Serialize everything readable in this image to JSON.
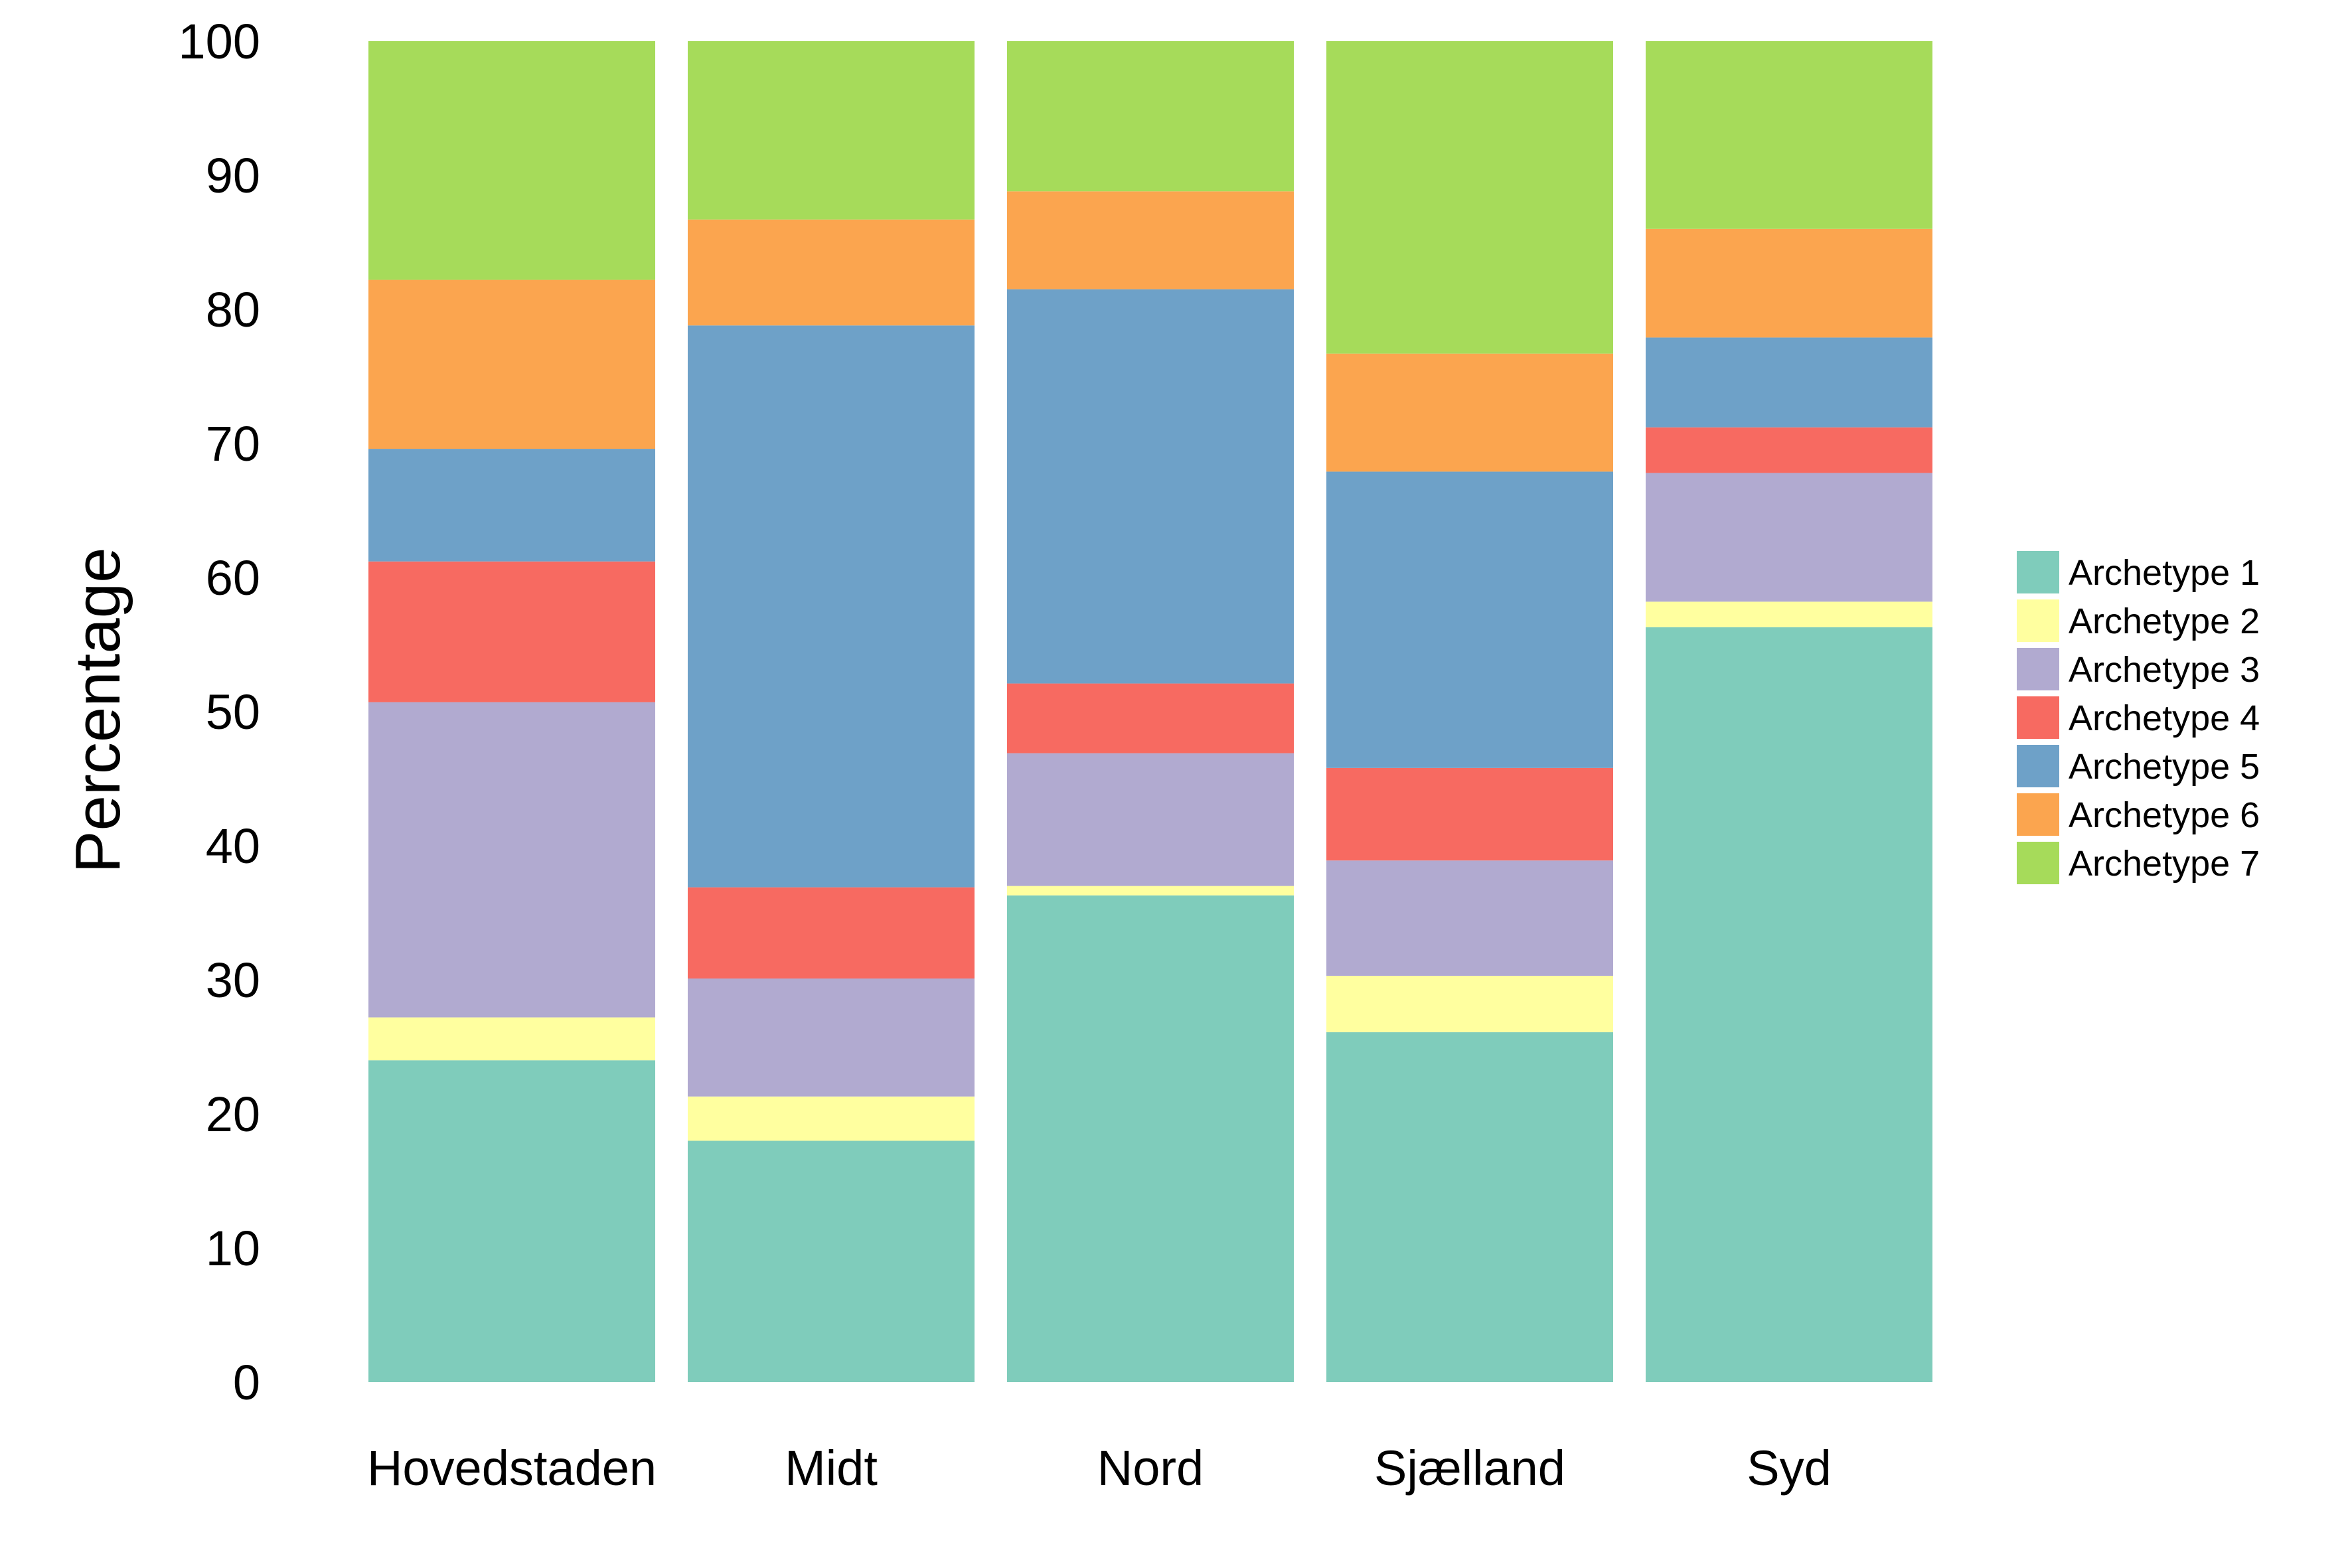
{
  "chart_data": {
    "type": "bar",
    "stacked": true,
    "title": "",
    "xlabel": "",
    "ylabel": "Percentage",
    "ylim": [
      0,
      100
    ],
    "yticks": [
      0,
      10,
      20,
      30,
      40,
      50,
      60,
      70,
      80,
      90,
      100
    ],
    "grid": false,
    "legend": "right",
    "categories": [
      "Hovedstaden",
      "Midt",
      "Nord",
      "Sjælland",
      "Syd"
    ],
    "series": [
      {
        "name": "Archetype 1",
        "color": "#7fccbb",
        "values": [
          24.0,
          18.0,
          36.3,
          26.1,
          56.3
        ]
      },
      {
        "name": "Archetype 2",
        "color": "#ffff9f",
        "values": [
          3.2,
          3.3,
          0.7,
          4.2,
          1.9
        ]
      },
      {
        "name": "Archetype 3",
        "color": "#b1aad0",
        "values": [
          23.5,
          8.8,
          9.9,
          8.6,
          9.6
        ]
      },
      {
        "name": "Archetype 4",
        "color": "#f76a61",
        "values": [
          10.5,
          6.8,
          5.2,
          6.9,
          3.4
        ]
      },
      {
        "name": "Archetype 5",
        "color": "#6ea1c8",
        "values": [
          8.4,
          41.9,
          29.4,
          22.1,
          6.7
        ]
      },
      {
        "name": "Archetype 6",
        "color": "#fba54f",
        "values": [
          12.6,
          7.9,
          7.3,
          8.8,
          8.1
        ]
      },
      {
        "name": "Archetype 7",
        "color": "#a6db5a",
        "values": [
          17.8,
          13.3,
          11.2,
          23.3,
          14.0
        ]
      }
    ]
  }
}
